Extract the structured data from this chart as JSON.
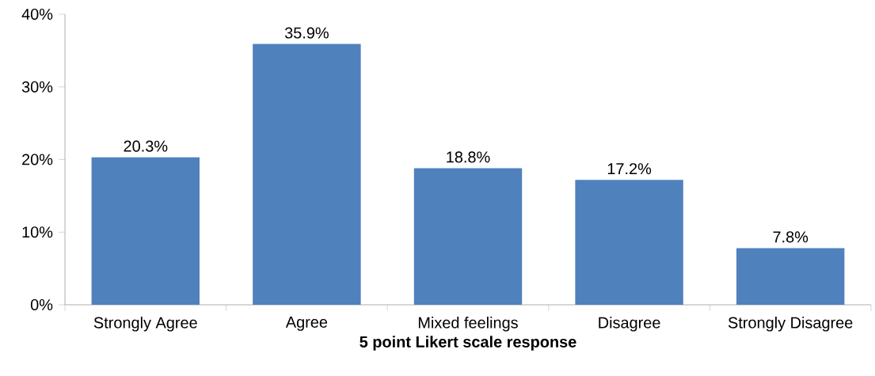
{
  "chart_data": {
    "type": "bar",
    "xlabel": "**5 point Likert scale response**",
    "categories": [
      "Strongly Agree",
      "Agree",
      "Mixed feelings",
      "Disagree",
      "Strongly Disagree"
    ],
    "values": [
      20.3,
      35.9,
      18.8,
      17.2,
      7.8
    ],
    "value_labels": [
      "20.3%",
      "35.9%",
      "18.8%",
      "17.2%",
      "7.8%"
    ],
    "color": "#4f81bd",
    "ylim": [
      0,
      40
    ],
    "yticks": [
      {
        "value": 0,
        "label": "0%"
      },
      {
        "value": 10,
        "label": "10%"
      },
      {
        "value": 20,
        "label": "20%"
      },
      {
        "value": 30,
        "label": "30%"
      },
      {
        "value": 40,
        "label": "40%"
      }
    ],
    "grid": false
  }
}
